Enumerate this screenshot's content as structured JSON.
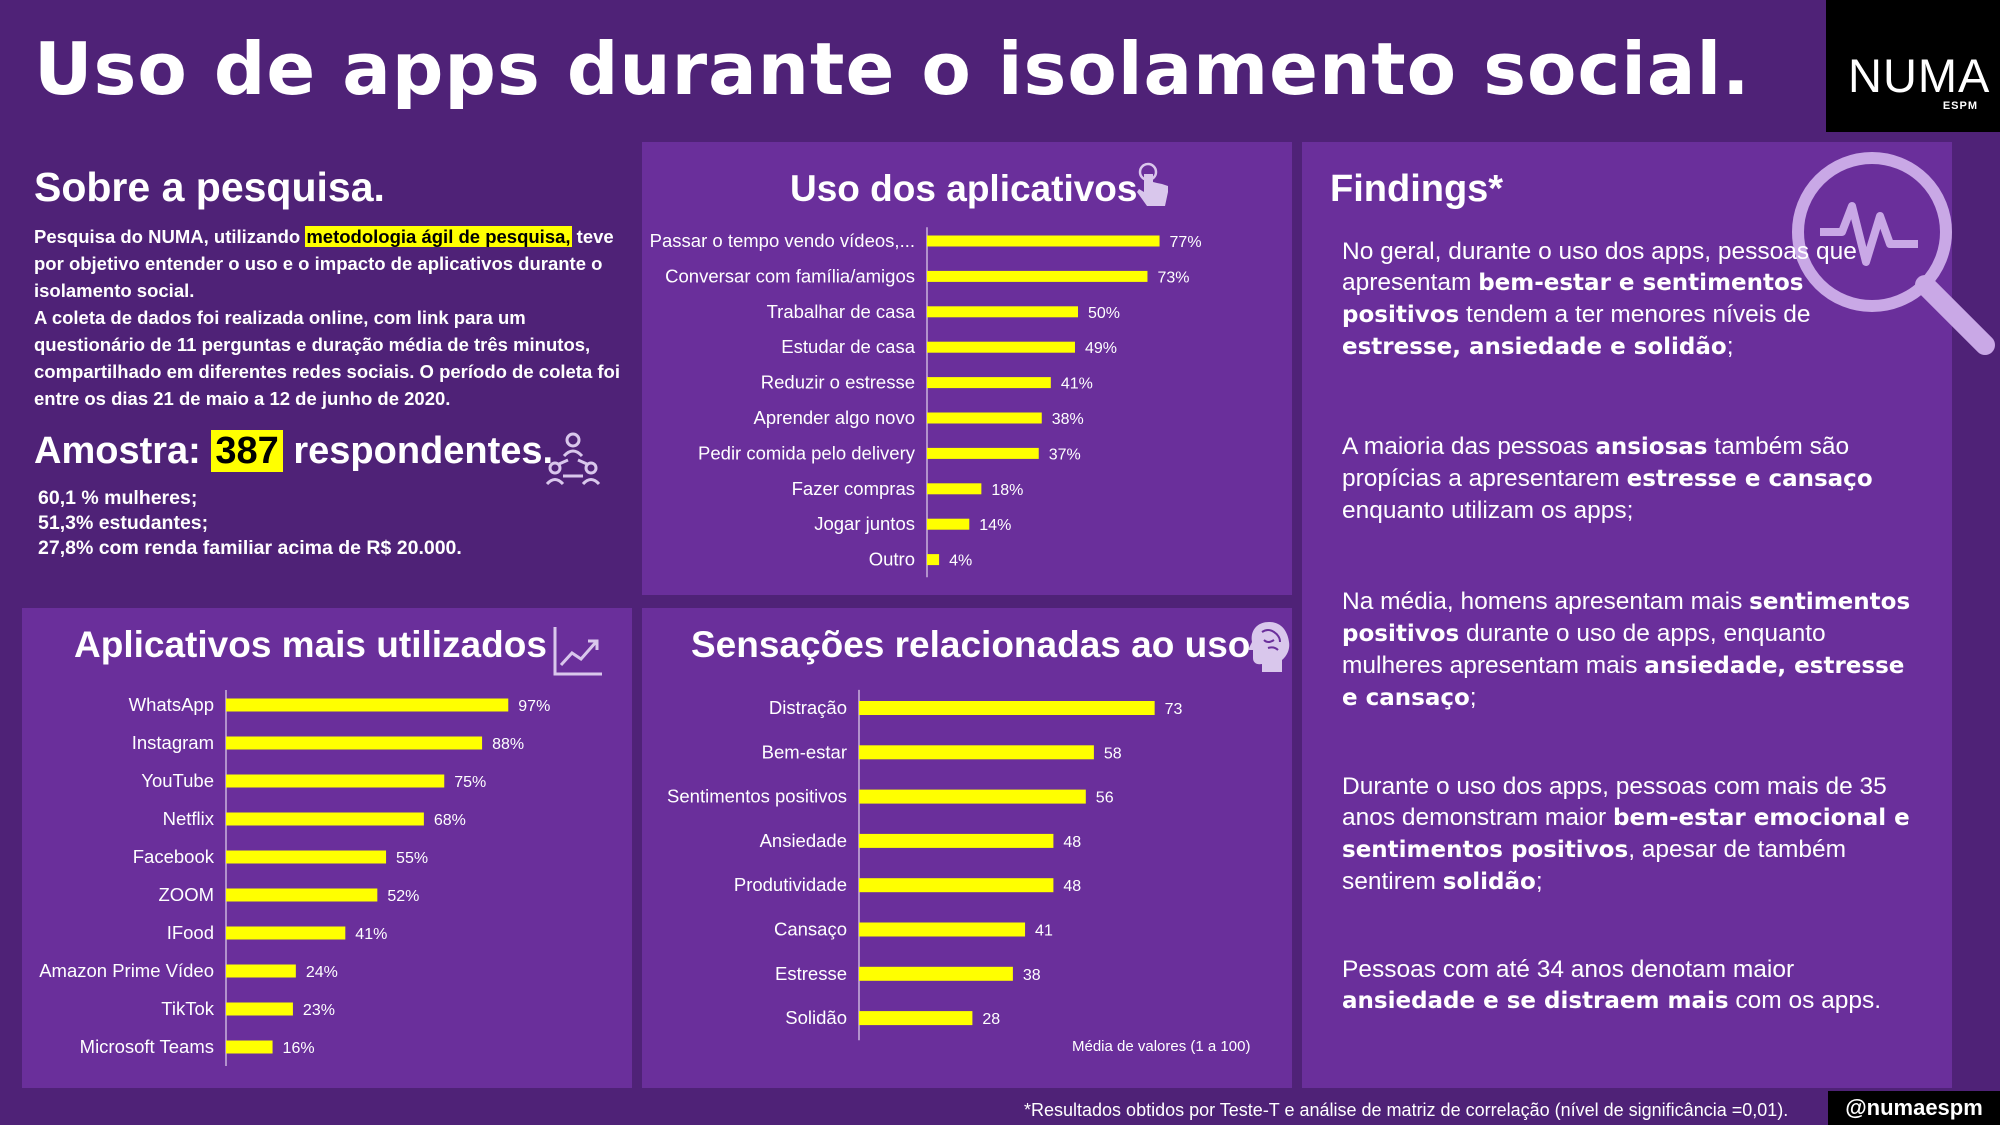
{
  "title": "Uso de apps durante o isolamento social.",
  "logo": {
    "word": "NUMA",
    "sub": "ESPM"
  },
  "sobre": {
    "heading": "Sobre a pesquisa.",
    "p1_before": "Pesquisa do NUMA, utilizando ",
    "p1_highlight": "metodologia ágil de pesquisa,",
    "p1_after": " teve por objetivo entender o uso e o impacto de aplicativos durante o isolamento social.",
    "p2": "A coleta de dados foi realizada online, com link para um questionário de 11 perguntas e duração média de três minutos, compartilhado em diferentes redes sociais. O período de coleta foi entre os dias 21 de maio a 12 de junho de 2020."
  },
  "amostra": {
    "label": "Amostra:",
    "number": "387",
    "suffix": "respondentes.",
    "stats": [
      "60,1 % mulheres;",
      "51,3% estudantes;",
      "27,8% com renda familiar acima de R$ 20.000."
    ]
  },
  "colors": {
    "background": "#4f2277",
    "panel": "#6a2f9b",
    "bar": "#ffff00",
    "highlight": "#ffff00"
  },
  "icons": {
    "amostra": "people-network-icon",
    "uso": "pointing-hand-icon",
    "apps": "trend-chart-icon",
    "sensacoes": "brain-head-icon",
    "findings": "magnifier-pulse-icon"
  },
  "chart_data": [
    {
      "type": "bar",
      "orientation": "horizontal",
      "title": "Uso dos aplicativos",
      "categories": [
        "Passar o tempo vendo vídeos,...",
        "Conversar com família/amigos",
        "Trabalhar de casa",
        "Estudar de casa",
        "Reduzir o estresse",
        "Aprender algo novo",
        "Pedir comida pelo delivery",
        "Fazer compras",
        "Jogar juntos",
        "Outro"
      ],
      "values": [
        77,
        73,
        50,
        49,
        41,
        38,
        37,
        18,
        14,
        4
      ],
      "value_labels": [
        "77%",
        "73%",
        "50%",
        "49%",
        "41%",
        "38%",
        "37%",
        "18%",
        "14%",
        "4%"
      ],
      "xlim": [
        0,
        100
      ]
    },
    {
      "type": "bar",
      "orientation": "horizontal",
      "title": "Aplicativos mais utilizados",
      "categories": [
        "WhatsApp",
        "Instagram",
        "YouTube",
        "Netflix",
        "Facebook",
        "ZOOM",
        "IFood",
        "Amazon Prime Vídeo",
        "TikTok",
        "Microsoft Teams"
      ],
      "values": [
        97,
        88,
        75,
        68,
        55,
        52,
        41,
        24,
        23,
        16
      ],
      "value_labels": [
        "97%",
        "88%",
        "75%",
        "68%",
        "55%",
        "52%",
        "41%",
        "24%",
        "23%",
        "16%"
      ],
      "xlim": [
        0,
        100
      ]
    },
    {
      "type": "bar",
      "orientation": "horizontal",
      "title": "Sensações relacionadas ao uso",
      "categories": [
        "Distração",
        "Bem-estar",
        "Sentimentos positivos",
        "Ansiedade",
        "Produtividade",
        "Cansaço",
        "Estresse",
        "Solidão"
      ],
      "values": [
        73,
        58,
        56,
        48,
        48,
        41,
        38,
        28
      ],
      "value_labels": [
        "73",
        "58",
        "56",
        "48",
        "48",
        "41",
        "38",
        "28"
      ],
      "xlim": [
        0,
        100
      ],
      "note": "Média de valores (1 a 100)"
    }
  ],
  "findings": {
    "title": "Findings*",
    "items": [
      [
        {
          "t": "No geral, durante o uso dos apps, pessoas que apresentam "
        },
        {
          "t": "bem-estar e sentimentos positivos",
          "b": true
        },
        {
          "t": " tendem a ter menores níveis de "
        },
        {
          "t": "estresse, ansiedade e solidão",
          "b": true
        },
        {
          "t": ";"
        }
      ],
      [
        {
          "t": "A maioria das pessoas "
        },
        {
          "t": "ansiosas",
          "b": true
        },
        {
          "t": " também são propícias a apresentarem "
        },
        {
          "t": "estresse e cansaço",
          "b": true
        },
        {
          "t": " enquanto utilizam os apps;"
        }
      ],
      [
        {
          "t": "Na média, homens apresentam mais "
        },
        {
          "t": "sentimentos positivos",
          "b": true
        },
        {
          "t": " durante o uso de apps, enquanto mulheres apresentam mais "
        },
        {
          "t": "ansiedade, estresse e cansaço",
          "b": true
        },
        {
          "t": ";"
        }
      ],
      [
        {
          "t": "Durante o uso dos apps, pessoas com mais de 35 anos demonstram maior "
        },
        {
          "t": "bem-estar emocional e sentimentos positivos",
          "b": true
        },
        {
          "t": ", apesar de também sentirem "
        },
        {
          "t": "solidão",
          "b": true
        },
        {
          "t": ";"
        }
      ],
      [
        {
          "t": "Pessoas com até 34 anos denotam maior "
        },
        {
          "t": "ansiedade e se distraem mais",
          "b": true
        },
        {
          "t": " com os apps."
        }
      ]
    ]
  },
  "footnote": "*Resultados obtidos por Teste-T e análise de matriz de correlação (nível de significância =0,01).",
  "handle": "@numaespm"
}
